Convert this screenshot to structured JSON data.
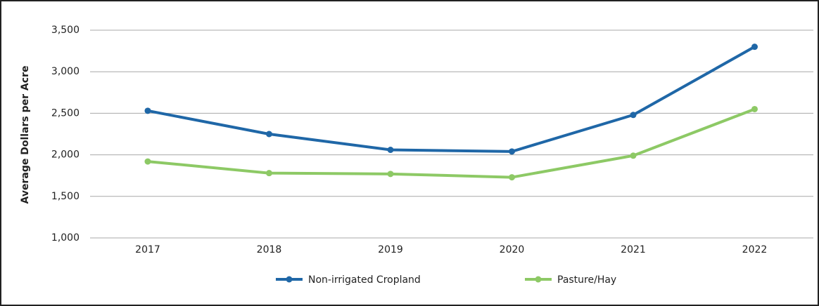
{
  "chart_data": {
    "type": "line",
    "y_label": "Average Dollars per Acre",
    "categories": [
      "2017",
      "2018",
      "2019",
      "2020",
      "2021",
      "2022"
    ],
    "series": [
      {
        "name": "Non-irrigated Cropland",
        "color": "#1f67a7",
        "values": [
          2530,
          2250,
          2060,
          2040,
          2480,
          3300
        ]
      },
      {
        "name": "Pasture/Hay",
        "color": "#8dc965",
        "values": [
          1920,
          1780,
          1770,
          1730,
          1990,
          2550
        ]
      }
    ],
    "ylim": [
      1000,
      3500
    ],
    "yticks": [
      {
        "value": 1000,
        "label": "1,000"
      },
      {
        "value": 1500,
        "label": "1,500"
      },
      {
        "value": 2000,
        "label": "2,000"
      },
      {
        "value": 2500,
        "label": "2,500"
      },
      {
        "value": 3000,
        "label": "3,000"
      },
      {
        "value": 3500,
        "label": "3,500"
      }
    ],
    "grid": true
  }
}
